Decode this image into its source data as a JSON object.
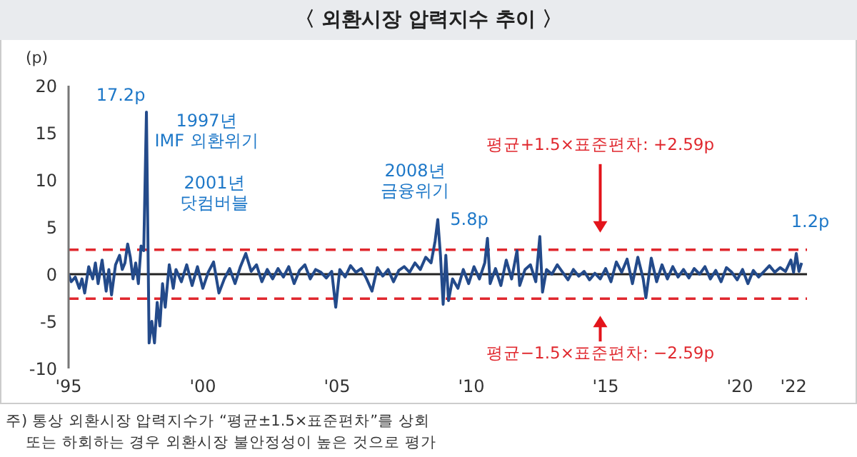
{
  "chart_data": {
    "type": "line",
    "title": "〈 외환시장 압력지수 추이 〉",
    "ylabel": "(p)",
    "x": [
      1995.0,
      1995.1,
      1995.25,
      1995.4,
      1995.5,
      1995.6,
      1995.75,
      1995.9,
      1996.0,
      1996.1,
      1996.25,
      1996.4,
      1996.5,
      1996.6,
      1996.75,
      1996.9,
      1997.0,
      1997.1,
      1997.2,
      1997.3,
      1997.4,
      1997.5,
      1997.6,
      1997.7,
      1997.8,
      1997.9,
      1997.95,
      1998.0,
      1998.1,
      1998.2,
      1998.3,
      1998.4,
      1998.5,
      1998.6,
      1998.75,
      1998.9,
      1999.0,
      1999.2,
      1999.4,
      1999.6,
      1999.8,
      2000.0,
      2000.2,
      2000.4,
      2000.6,
      2000.8,
      2001.0,
      2001.2,
      2001.4,
      2001.6,
      2001.8,
      2002.0,
      2002.2,
      2002.4,
      2002.6,
      2002.8,
      2003.0,
      2003.2,
      2003.4,
      2003.6,
      2003.8,
      2004.0,
      2004.2,
      2004.4,
      2004.6,
      2004.8,
      2004.95,
      2005.1,
      2005.3,
      2005.5,
      2005.7,
      2005.9,
      2006.1,
      2006.3,
      2006.5,
      2006.7,
      2006.9,
      2007.1,
      2007.3,
      2007.5,
      2007.7,
      2007.9,
      2008.1,
      2008.3,
      2008.5,
      2008.65,
      2008.75,
      2008.85,
      2008.95,
      2009.05,
      2009.15,
      2009.3,
      2009.5,
      2009.7,
      2009.9,
      2010.1,
      2010.3,
      2010.5,
      2010.6,
      2010.7,
      2010.9,
      2011.1,
      2011.3,
      2011.5,
      2011.7,
      2011.8,
      2012.0,
      2012.2,
      2012.4,
      2012.55,
      2012.65,
      2012.8,
      2013.0,
      2013.2,
      2013.4,
      2013.6,
      2013.8,
      2014.0,
      2014.2,
      2014.4,
      2014.6,
      2014.8,
      2015.0,
      2015.2,
      2015.4,
      2015.6,
      2015.8,
      2016.0,
      2016.2,
      2016.4,
      2016.5,
      2016.7,
      2016.9,
      2017.1,
      2017.3,
      2017.5,
      2017.7,
      2017.9,
      2018.1,
      2018.3,
      2018.5,
      2018.7,
      2018.9,
      2019.1,
      2019.3,
      2019.5,
      2019.7,
      2019.9,
      2020.1,
      2020.3,
      2020.5,
      2020.7,
      2020.9,
      2021.1,
      2021.3,
      2021.5,
      2021.7,
      2021.9,
      2022.0,
      2022.1,
      2022.2,
      2022.3
    ],
    "series": [
      {
        "color": "#234a8a",
        "values": [
          0,
          -0.8,
          -0.3,
          -1.5,
          -0.5,
          -2.0,
          0.8,
          -0.5,
          1.2,
          -1.0,
          1.5,
          -1.8,
          0.5,
          -2.2,
          1.0,
          2.0,
          0.5,
          1.2,
          3.2,
          1.8,
          -0.5,
          1.2,
          -1.0,
          3.0,
          2.5,
          17.2,
          5.0,
          -7.3,
          -5.0,
          -7.3,
          -3.0,
          -5.5,
          -1.0,
          -3.5,
          1.0,
          -1.5,
          0.5,
          -0.8,
          1.0,
          -1.2,
          0.8,
          -1.5,
          0.2,
          1.3,
          -2.0,
          -0.5,
          0.6,
          -1.0,
          0.8,
          2.2,
          0.3,
          1.0,
          -0.8,
          0.5,
          -0.5,
          0.6,
          -0.3,
          0.8,
          -1.0,
          0.4,
          1.0,
          -0.5,
          0.5,
          0.2,
          -0.4,
          0.3,
          -3.5,
          0.5,
          -0.3,
          0.9,
          0.2,
          0.6,
          -0.5,
          -1.8,
          0.7,
          -0.2,
          0.5,
          -0.8,
          0.4,
          0.8,
          0.2,
          1.2,
          0.5,
          1.8,
          1.2,
          3.5,
          5.8,
          2.0,
          -3.2,
          2.0,
          -2.8,
          -0.5,
          -1.5,
          0.5,
          -1.0,
          0.8,
          -0.5,
          1.2,
          3.8,
          -1.0,
          0.6,
          -1.2,
          1.5,
          -0.5,
          2.5,
          -1.2,
          0.5,
          1.0,
          -0.8,
          4.0,
          -1.9,
          0.5,
          0.0,
          1.0,
          0.2,
          -0.6,
          0.5,
          -0.2,
          0.3,
          -0.6,
          0.1,
          -0.5,
          0.6,
          -0.8,
          1.3,
          0.2,
          1.6,
          -1.0,
          1.8,
          -0.5,
          -2.5,
          1.7,
          -0.8,
          1.0,
          -0.5,
          0.8,
          -0.3,
          0.5,
          -0.4,
          0.6,
          0.0,
          0.8,
          -0.5,
          0.4,
          -0.8,
          0.7,
          0.2,
          -0.6,
          0.5,
          -1.0,
          0.4,
          -0.3,
          0.3,
          0.9,
          0.2,
          0.7,
          0.3,
          1.5,
          0.2,
          2.2,
          0.3,
          1.2
        ]
      }
    ],
    "xlim": [
      1995,
      2022.5
    ],
    "xticks": [
      {
        "value": 1995,
        "label": "'95"
      },
      {
        "value": 2000,
        "label": "'00"
      },
      {
        "value": 2005,
        "label": "'05"
      },
      {
        "value": 2010,
        "label": "'10"
      },
      {
        "value": 2015,
        "label": "'15"
      },
      {
        "value": 2020,
        "label": "'20"
      },
      {
        "value": 2022,
        "label": "'22"
      }
    ],
    "ylim": [
      -10,
      20
    ],
    "yticks": [
      -10,
      -5,
      0,
      5,
      10,
      15,
      20
    ],
    "marker": "none",
    "line_style": "solid",
    "ref_lines": [
      {
        "axis": "y",
        "value": 0,
        "color": "#222222",
        "line_style": "solid"
      },
      {
        "axis": "y",
        "value": 2.59,
        "label": "평균+1.5×표준편차: +2.59p",
        "color": "#e0282e",
        "line_style": "dashed"
      },
      {
        "axis": "y",
        "value": -2.59,
        "label": "평균−1.5×표준편차: −2.59p",
        "color": "#e0282e",
        "line_style": "dashed"
      }
    ],
    "annotations": [
      {
        "text": "17.2p",
        "x": 1997.9,
        "y": 17.2
      },
      {
        "text": "1997년\nIMF 외환위기",
        "x": 1997.9,
        "y": 17.2
      },
      "2001년\n닷컴버블",
      {
        "text": "2008년\n금융위기",
        "x": 2008.75,
        "y": 5.8
      },
      {
        "text": "5.8p",
        "x": 2008.75,
        "y": 5.8
      },
      {
        "text": "1.2p",
        "x": 2022.3,
        "y": 1.2
      },
      "주) 통상 외환시장 압력지수가 “평균±1.5×표준편차”를 상회\n또는 하회하는 경우 외환시장 불안정성이 높은 것으로 평가"
    ]
  }
}
